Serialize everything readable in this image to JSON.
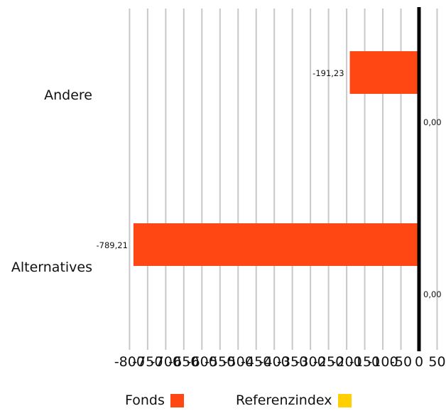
{
  "chart_data": {
    "type": "bar",
    "orientation": "horizontal",
    "categories": [
      "Andere",
      "Alternatives"
    ],
    "series": [
      {
        "name": "Fonds",
        "color": "#FF4713",
        "values": [
          -191.23,
          -789.21
        ],
        "labels": [
          "-191,23",
          "-789,21"
        ]
      },
      {
        "name": "Referenzindex",
        "color": "#FFCF00",
        "values": [
          0,
          0
        ],
        "labels": [
          "0,00",
          "0,00"
        ]
      }
    ],
    "xlim": [
      -800,
      50
    ],
    "xticks": [
      -800,
      -750,
      -700,
      -650,
      -600,
      -550,
      -500,
      -450,
      -400,
      -350,
      -300,
      -250,
      -200,
      -150,
      -100,
      -50,
      0,
      50
    ],
    "xtick_labels": [
      "-800",
      "-750",
      "-700",
      "-650",
      "-600",
      "-550",
      "-500",
      "-450",
      "-400",
      "-350",
      "-300",
      "-250",
      "-200",
      "-150",
      "-100",
      "-50",
      "0",
      "50"
    ],
    "grid": true,
    "legend_position": "bottom"
  }
}
